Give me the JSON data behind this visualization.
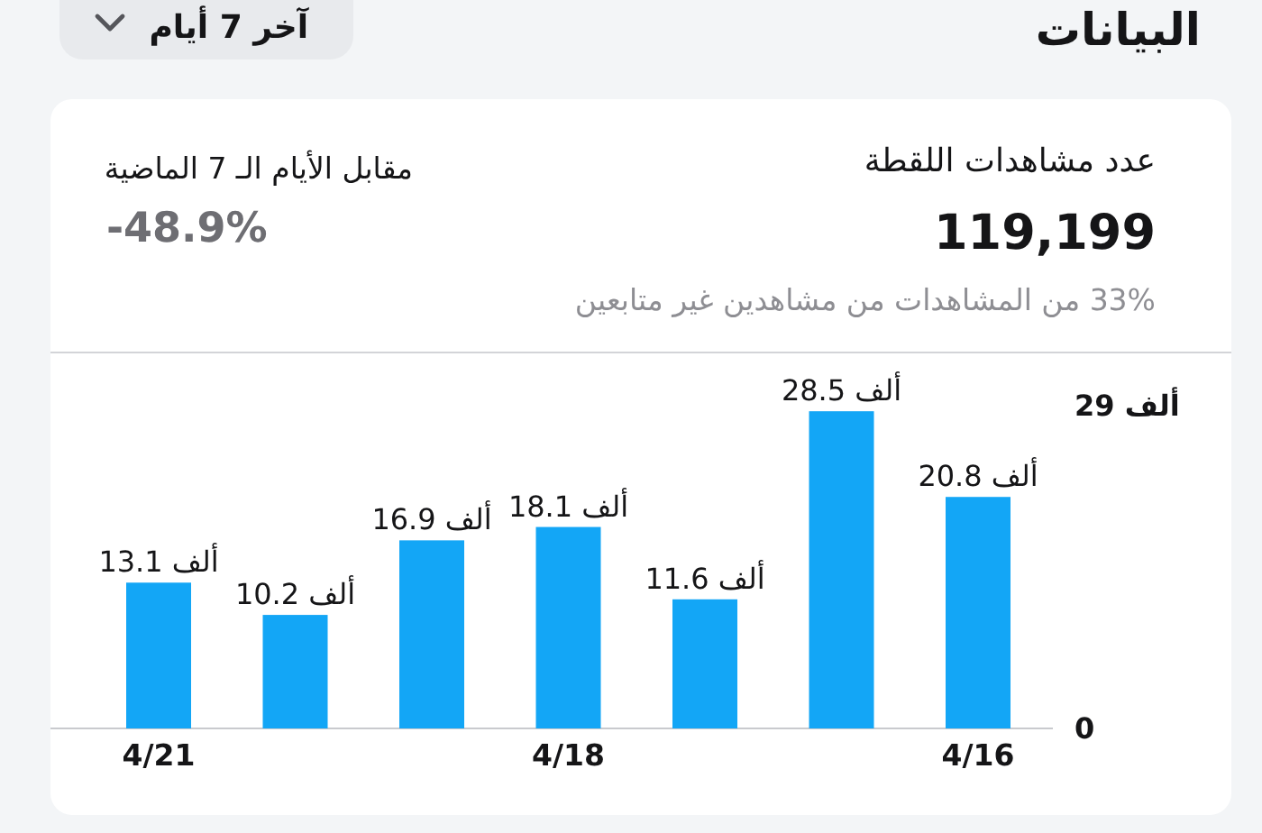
{
  "chart_data": {
    "type": "bar",
    "title": "البيانات",
    "annotations": [
      "آخر 7 أيام",
      "عدد مشاهدات اللقطة",
      "119,199",
      "33% من المشاهدات من مشاهدين غير متابعين",
      "مقابل الأيام الـ 7 الماضية",
      "-48.9%"
    ],
    "categories": [
      "4/21",
      null,
      null,
      "4/18",
      null,
      null,
      "4/16"
    ],
    "values": [
      13.1,
      10.2,
      16.9,
      18.1,
      11.6,
      28.5,
      20.8
    ],
    "value_labels": [
      "13.1 ألف",
      "10.2 ألف",
      "16.9 ألف",
      "18.1 ألف",
      "11.6 ألف",
      "28.5 ألف",
      "20.8 ألف"
    ],
    "color": "#13a6f6",
    "ylim": [
      0,
      29
    ],
    "yticks": [
      0,
      {
        "value": 29,
        "label": "29 ألف"
      }
    ]
  }
}
